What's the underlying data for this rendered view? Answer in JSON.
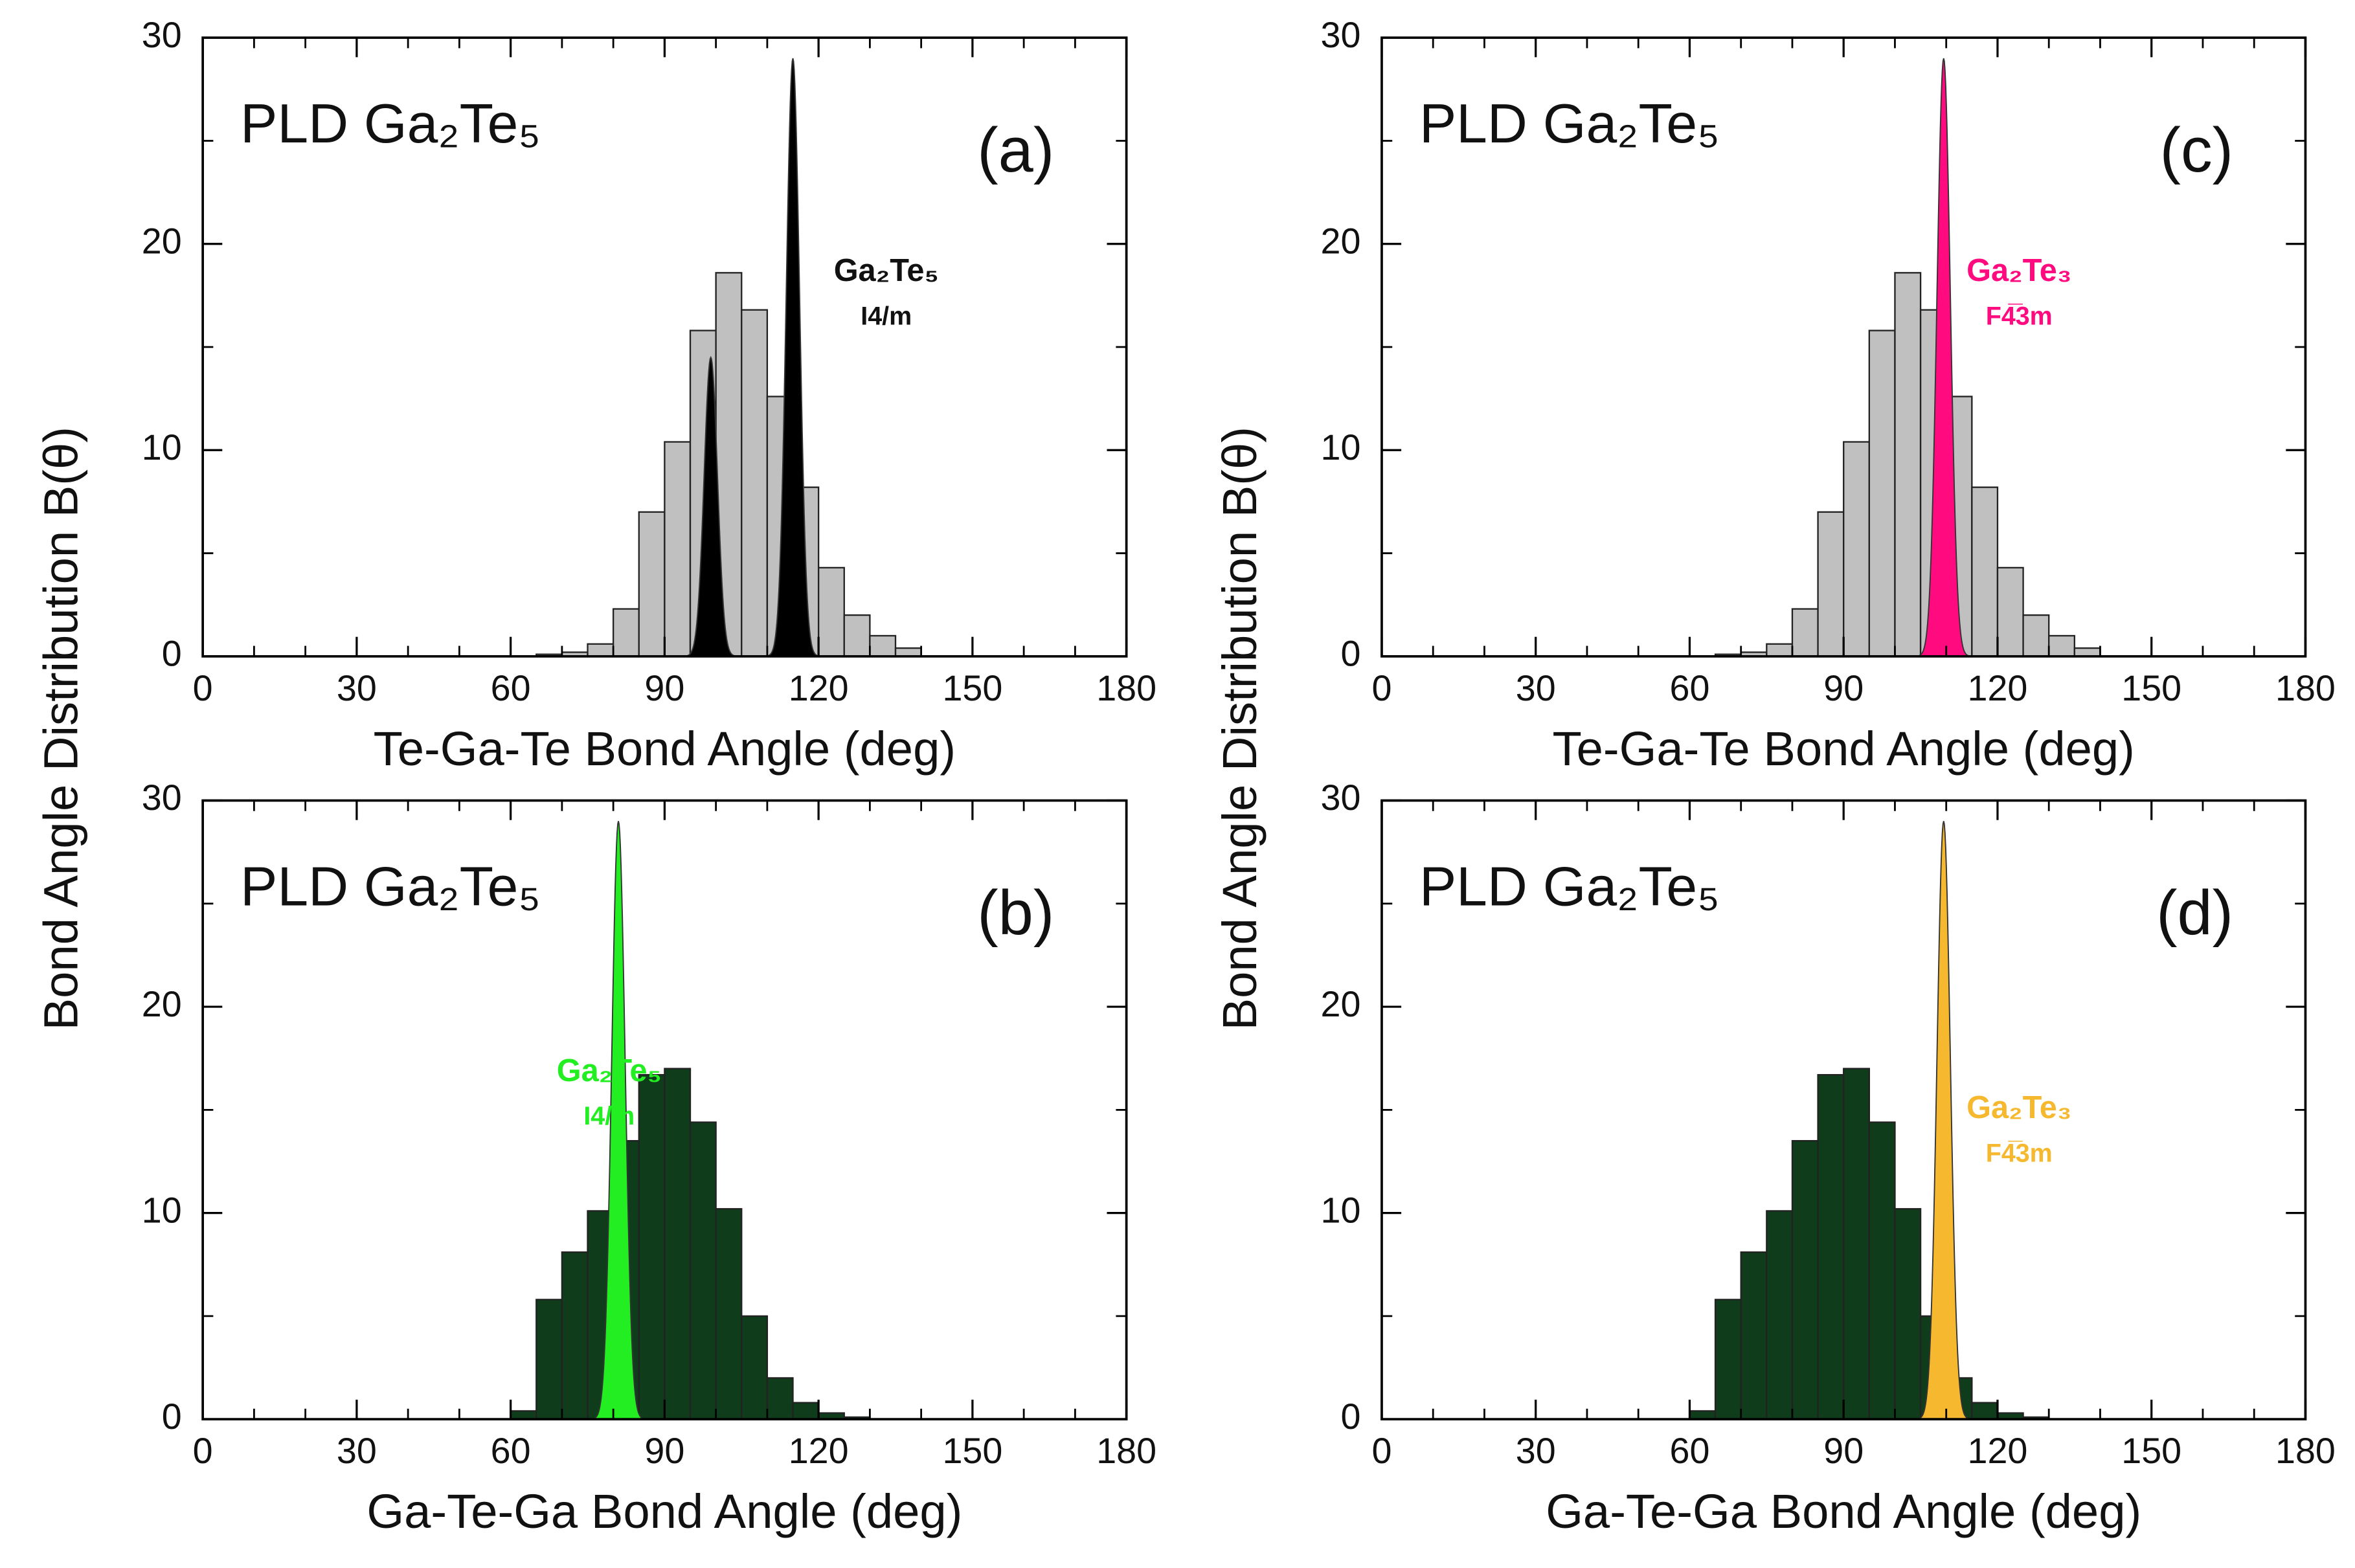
{
  "chart_data": [
    {
      "type": "histogram",
      "panel_label": "(a)",
      "sample_label": "PLD Ga₂Te₅",
      "ylabel": "Bond Angle Distribution B(θ)",
      "xlabel": "Te-Ga-Te Bond Angle (deg)",
      "bins": [
        65,
        70,
        75,
        80,
        85,
        90,
        95,
        100,
        105,
        110,
        115,
        120,
        125,
        130,
        135,
        140
      ],
      "values": [
        0.1,
        0.2,
        0.6,
        2.3,
        7.0,
        10.4,
        15.8,
        18.6,
        16.8,
        12.6,
        8.2,
        4.3,
        2.0,
        1.0,
        0.4
      ],
      "color": "#c0c0c0",
      "peaks": {
        "color": "#000000",
        "x": [
          99,
          115
        ],
        "values": [
          14.5,
          29
        ]
      },
      "annotation": [
        "Ga₂Te₅",
        "I4/m"
      ],
      "xlim": [
        0,
        180
      ],
      "xticks": [
        0,
        30,
        60,
        90,
        120,
        150,
        180
      ],
      "ylim": [
        0,
        30
      ],
      "yticks": [
        0,
        10,
        20,
        30
      ]
    },
    {
      "type": "histogram",
      "panel_label": "(b)",
      "sample_label": "PLD Ga₂Te₅",
      "xlabel": "Ga-Te-Ga Bond Angle (deg)",
      "bins": [
        60,
        65,
        70,
        75,
        80,
        85,
        90,
        95,
        100,
        105,
        110,
        115,
        120,
        125,
        130
      ],
      "values": [
        0.4,
        5.8,
        8.1,
        10.1,
        13.5,
        16.7,
        17.0,
        14.4,
        10.2,
        5.0,
        2.0,
        0.8,
        0.3,
        0.1
      ],
      "color": "#0f3d1c",
      "peaks": {
        "color": "#22ee22",
        "x": [
          81
        ],
        "values": [
          29
        ]
      },
      "annotation": [
        "Ga₂Te₅",
        "I4/m"
      ],
      "xlim": [
        0,
        180
      ],
      "xticks": [
        0,
        30,
        60,
        90,
        120,
        150,
        180
      ],
      "ylim": [
        0,
        30
      ],
      "yticks": [
        0,
        10,
        20,
        30
      ]
    },
    {
      "type": "histogram",
      "panel_label": "(c)",
      "sample_label": "PLD Ga₂Te₅",
      "ylabel": "Bond Angle Distribution B(θ)",
      "xlabel": "Te-Ga-Te Bond Angle (deg)",
      "bins": [
        65,
        70,
        75,
        80,
        85,
        90,
        95,
        100,
        105,
        110,
        115,
        120,
        125,
        130,
        135,
        140
      ],
      "values": [
        0.1,
        0.2,
        0.6,
        2.3,
        7.0,
        10.4,
        15.8,
        18.6,
        16.8,
        12.6,
        8.2,
        4.3,
        2.0,
        1.0,
        0.4
      ],
      "color": "#c0c0c0",
      "peaks": {
        "color": "#ff0a7f",
        "x": [
          109.5
        ],
        "values": [
          29
        ]
      },
      "annotation": [
        "Ga₂Te₃",
        "F4̅3m"
      ],
      "xlim": [
        0,
        180
      ],
      "xticks": [
        0,
        30,
        60,
        90,
        120,
        150,
        180
      ],
      "ylim": [
        0,
        30
      ],
      "yticks": [
        0,
        10,
        20,
        30
      ]
    },
    {
      "type": "histogram",
      "panel_label": "(d)",
      "sample_label": "PLD Ga₂Te₅",
      "xlabel": "Ga-Te-Ga Bond Angle (deg)",
      "bins": [
        60,
        65,
        70,
        75,
        80,
        85,
        90,
        95,
        100,
        105,
        110,
        115,
        120,
        125,
        130
      ],
      "values": [
        0.4,
        5.8,
        8.1,
        10.1,
        13.5,
        16.7,
        17.0,
        14.4,
        10.2,
        5.0,
        2.0,
        0.8,
        0.3,
        0.1
      ],
      "color": "#0f3d1c",
      "peaks": {
        "color": "#f5b82e",
        "x": [
          109.5
        ],
        "values": [
          29
        ]
      },
      "annotation": [
        "Ga₂Te₃",
        "F4̅3m"
      ],
      "xlim": [
        0,
        180
      ],
      "xticks": [
        0,
        30,
        60,
        90,
        120,
        150,
        180
      ],
      "ylim": [
        0,
        30
      ],
      "yticks": [
        0,
        10,
        20,
        30
      ]
    }
  ]
}
